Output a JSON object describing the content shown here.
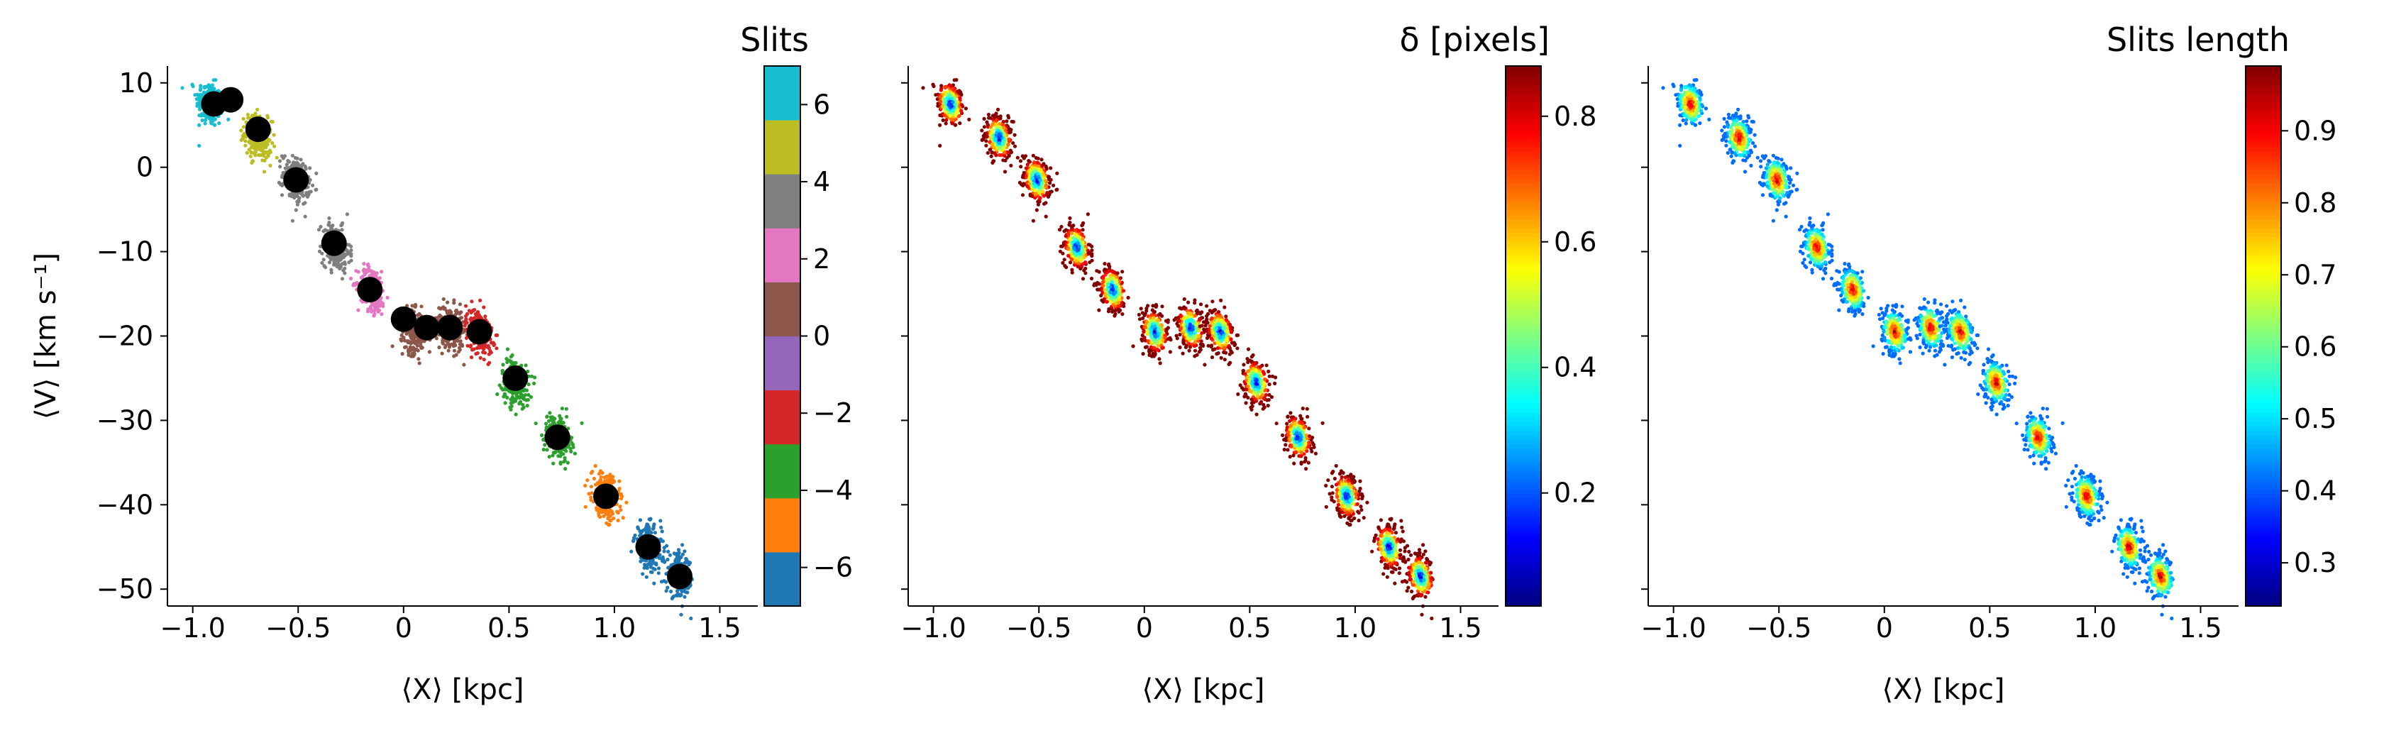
{
  "chart_data": [
    {
      "type": "scatter",
      "panel": "slits",
      "xlabel": "⟨X⟩ [kpc]",
      "ylabel": "⟨V⟩ [km s⁻¹]",
      "xlim": [
        -1.12,
        1.68
      ],
      "ylim": [
        -52,
        12
      ],
      "xticks": [
        -1.0,
        -0.5,
        0.0,
        0.5,
        1.0,
        1.5
      ],
      "yticks": [
        10,
        0,
        -10,
        -20,
        -30,
        -40,
        -50
      ],
      "colorbar": {
        "title": "Slits",
        "type": "discrete",
        "range": [
          -7,
          7
        ],
        "ticks": [
          6,
          4,
          2,
          0,
          -2,
          -4,
          -6
        ],
        "colors": [
          "#1f77b4",
          "#ff7f0e",
          "#2ca02c",
          "#d62728",
          "#9467bd",
          "#8c564b",
          "#e377c2",
          "#7f7f7f",
          "#bcbd22",
          "#17becf"
        ]
      },
      "clusters": [
        {
          "x": -0.92,
          "y": 7.5,
          "color": "#17becf"
        },
        {
          "x": -0.69,
          "y": 3.5,
          "color": "#bcbd22"
        },
        {
          "x": -0.51,
          "y": -1.5,
          "color": "#7f7f7f"
        },
        {
          "x": -0.32,
          "y": -9.5,
          "color": "#7f7f7f"
        },
        {
          "x": -0.15,
          "y": -14.5,
          "color": "#e377c2"
        },
        {
          "x": 0.05,
          "y": -19.5,
          "color": "#8c564b"
        },
        {
          "x": 0.22,
          "y": -19.0,
          "color": "#8c564b"
        },
        {
          "x": 0.36,
          "y": -19.5,
          "color": "#d62728"
        },
        {
          "x": 0.53,
          "y": -25.5,
          "color": "#2ca02c"
        },
        {
          "x": 0.73,
          "y": -32.0,
          "color": "#2ca02c"
        },
        {
          "x": 0.96,
          "y": -39.0,
          "color": "#ff7f0e"
        },
        {
          "x": 1.16,
          "y": -45.0,
          "color": "#1f77b4"
        },
        {
          "x": 1.31,
          "y": -48.5,
          "color": "#1f77b4"
        }
      ],
      "slit_centers": [
        {
          "x": -0.9,
          "y": 7.5
        },
        {
          "x": -0.82,
          "y": 8.0
        },
        {
          "x": -0.69,
          "y": 4.5
        },
        {
          "x": -0.51,
          "y": -1.5
        },
        {
          "x": -0.33,
          "y": -9.0
        },
        {
          "x": -0.16,
          "y": -14.5
        },
        {
          "x": 0.0,
          "y": -18.0
        },
        {
          "x": 0.11,
          "y": -19.0
        },
        {
          "x": 0.22,
          "y": -19.0
        },
        {
          "x": 0.36,
          "y": -19.5
        },
        {
          "x": 0.53,
          "y": -25.0
        },
        {
          "x": 0.73,
          "y": -32.0
        },
        {
          "x": 0.96,
          "y": -39.0
        },
        {
          "x": 1.16,
          "y": -45.0
        },
        {
          "x": 1.31,
          "y": -48.5
        }
      ]
    },
    {
      "type": "scatter",
      "panel": "delta",
      "xlabel": "⟨X⟩ [kpc]",
      "xlim": [
        -1.12,
        1.68
      ],
      "ylim": [
        -52,
        12
      ],
      "xticks": [
        -1.0,
        -0.5,
        0.0,
        0.5,
        1.0,
        1.5
      ],
      "colorbar": {
        "title": "δ [pixels]",
        "colormap": "jet",
        "range": [
          0.02,
          0.88
        ],
        "ticks": [
          0.8,
          0.6,
          0.4,
          0.2
        ]
      }
    },
    {
      "type": "scatter",
      "panel": "slit-length",
      "xlabel": "⟨X⟩ [kpc]",
      "xlim": [
        -1.12,
        1.68
      ],
      "ylim": [
        -52,
        12
      ],
      "xticks": [
        -1.0,
        -0.5,
        0.0,
        0.5,
        1.0,
        1.5
      ],
      "colorbar": {
        "title": "Slits length",
        "colormap": "jet",
        "range": [
          0.24,
          0.99
        ],
        "ticks": [
          0.9,
          0.8,
          0.7,
          0.6,
          0.5,
          0.4,
          0.3
        ]
      }
    }
  ]
}
